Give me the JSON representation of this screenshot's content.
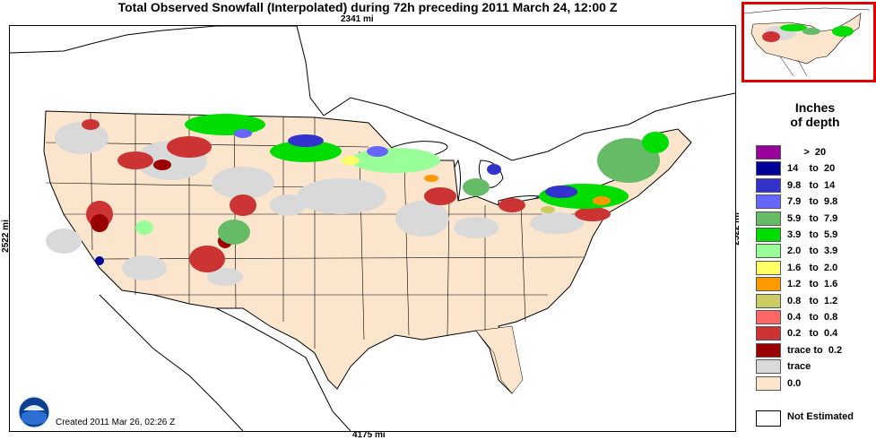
{
  "title": "Total Observed Snowfall (Interpolated) during 72h preceding 2011 March 24, 12:00 Z",
  "dimensions": {
    "top": "2341 mi",
    "bottom": "4175 mi",
    "left": "2522 mi",
    "right": "2522 mi"
  },
  "legend": {
    "title_line1": "Inches",
    "title_line2": "of depth",
    "items": [
      {
        "label": "      >  20",
        "color": "#990099"
      },
      {
        "label": "14    to  20",
        "color": "#000099"
      },
      {
        "label": "9.8   to  14",
        "color": "#3333cc"
      },
      {
        "label": "7.9   to  9.8",
        "color": "#6666ff"
      },
      {
        "label": "5.9   to  7.9",
        "color": "#66bb66"
      },
      {
        "label": "3.9   to  5.9",
        "color": "#00dd00"
      },
      {
        "label": "2.0   to  3.9",
        "color": "#99ff99"
      },
      {
        "label": "1.6   to  2.0",
        "color": "#ffff66"
      },
      {
        "label": "1.2   to  1.6",
        "color": "#ff9900"
      },
      {
        "label": "0.8   to  1.2",
        "color": "#cccc66"
      },
      {
        "label": "0.4   to  0.8",
        "color": "#ff6666"
      },
      {
        "label": "0.2   to  0.4",
        "color": "#cc3333"
      },
      {
        "label": "trace to  0.2",
        "color": "#990000"
      },
      {
        "label": "trace",
        "color": "#d9d9d9"
      },
      {
        "label": "0.0",
        "color": "#fce5cd"
      }
    ],
    "not_estimated": "Not Estimated"
  },
  "footer": {
    "created": "Created 2011 Mar 26, 02:26 Z",
    "logo_text": "NOAA"
  },
  "colors": {
    "land_no_snow": "#fce5cd",
    "trace": "#d9d9d9",
    "border": "#000000",
    "inset_frame": "#e00000"
  }
}
